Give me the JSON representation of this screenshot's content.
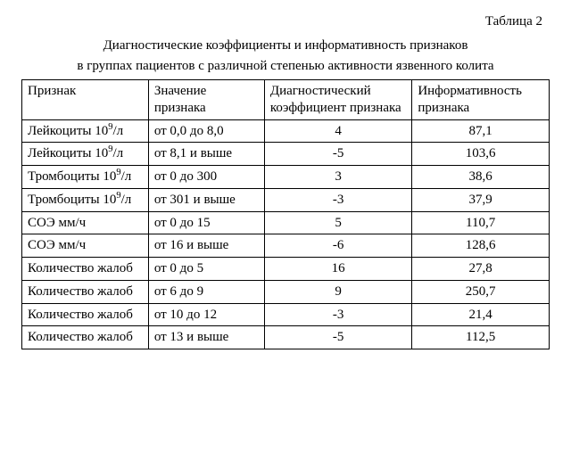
{
  "table_label": "Таблица 2",
  "title_line1": "Диагностические коэффициенты и информативность признаков",
  "title_line2": "в группах пациентов с различной степенью активности  язвенного колита",
  "columns": [
    "Признак",
    "Значение признака",
    "Диагностический коэффициент признака",
    "Информативность признака"
  ],
  "rows": [
    {
      "c0_html": "Лейкоциты 10<sup>9</sup>/л",
      "c1": "от 0,0 до 8,0",
      "c2": "4",
      "c3": "87,1"
    },
    {
      "c0_html": "Лейкоциты 10<sup>9</sup>/л",
      "c1": "от 8,1 и выше",
      "c2": "-5",
      "c3": "103,6"
    },
    {
      "c0_html": "Тромбоциты 10<sup>9</sup>/л",
      "c1": "от 0 до 300",
      "c2": "3",
      "c3": "38,6"
    },
    {
      "c0_html": "Тромбоциты 10<sup>9</sup>/л",
      "c1": "от 301 и выше",
      "c2": "-3",
      "c3": "37,9"
    },
    {
      "c0_html": "СОЭ мм/ч",
      "c1": "от 0 до 15",
      "c2": "5",
      "c3": "110,7"
    },
    {
      "c0_html": "СОЭ мм/ч",
      "c1": "от 16 и выше",
      "c2": "-6",
      "c3": "128,6"
    },
    {
      "c0_html": "Количество жалоб",
      "c1": "от 0 до 5",
      "c2": "16",
      "c3": "27,8"
    },
    {
      "c0_html": "Количество жалоб",
      "c1": "от 6 до 9",
      "c2": "9",
      "c3": "250,7"
    },
    {
      "c0_html": "Количество жалоб",
      "c1": "от 10 до 12",
      "c2": "-3",
      "c3": "21,4"
    },
    {
      "c0_html": "Количество жалоб",
      "c1": "от 13 и выше",
      "c2": "-5",
      "c3": "112,5"
    }
  ],
  "style": {
    "font_family": "Times New Roman",
    "body_font_size_pt": 11,
    "text_color": "#000000",
    "background_color": "#ffffff",
    "border_color": "#000000",
    "column_widths_pct": [
      24,
      22,
      28,
      26
    ],
    "numeric_columns_centered": [
      2,
      3
    ]
  }
}
